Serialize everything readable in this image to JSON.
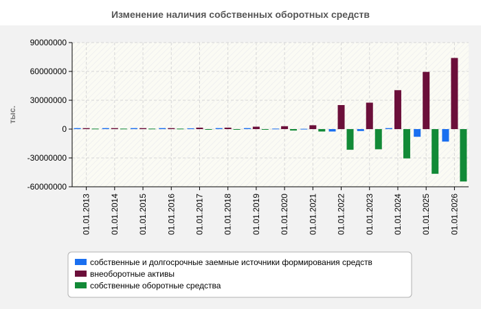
{
  "chart_data": {
    "type": "bar",
    "title": "Изменение наличия собственных оборотных средств",
    "ylabel": "тыс.",
    "xlabel": "",
    "ylim": [
      -60000000,
      90000000
    ],
    "yticks": [
      90000000,
      60000000,
      30000000,
      0,
      -30000000,
      -60000000
    ],
    "grid": true,
    "legend_position": "bottom",
    "categories": [
      "01.01.2013",
      "01.01.2014",
      "01.01.2015",
      "01.01.2016",
      "01.01.2017",
      "01.01.2018",
      "01.01.2019",
      "01.01.2020",
      "01.01.2021",
      "01.01.2022",
      "01.01.2023",
      "01.01.2024",
      "01.01.2025",
      "01.01.2026"
    ],
    "series": [
      {
        "name": "собственные и долгосрочные заемные источники формирования средств",
        "color": "#1a6ff0",
        "values": [
          1000000,
          1000000,
          1000000,
          1000000,
          800000,
          1000000,
          1000000,
          500000,
          300000,
          -2500000,
          -2000000,
          1000000,
          -8000000,
          -13000000
        ]
      },
      {
        "name": "внеоборотные активы",
        "color": "#6b0f3a",
        "values": [
          1000000,
          1000000,
          1000000,
          1000000,
          1500000,
          1500000,
          2500000,
          3000000,
          4000000,
          25000000,
          27500000,
          40500000,
          59500000,
          74000000
        ]
      },
      {
        "name": "собственные оборотные средства",
        "color": "#128a37",
        "values": [
          500000,
          500000,
          500000,
          500000,
          0,
          0,
          -200000,
          -1500000,
          -2500000,
          -21500000,
          -21000000,
          -30500000,
          -46500000,
          -54500000
        ]
      }
    ]
  }
}
